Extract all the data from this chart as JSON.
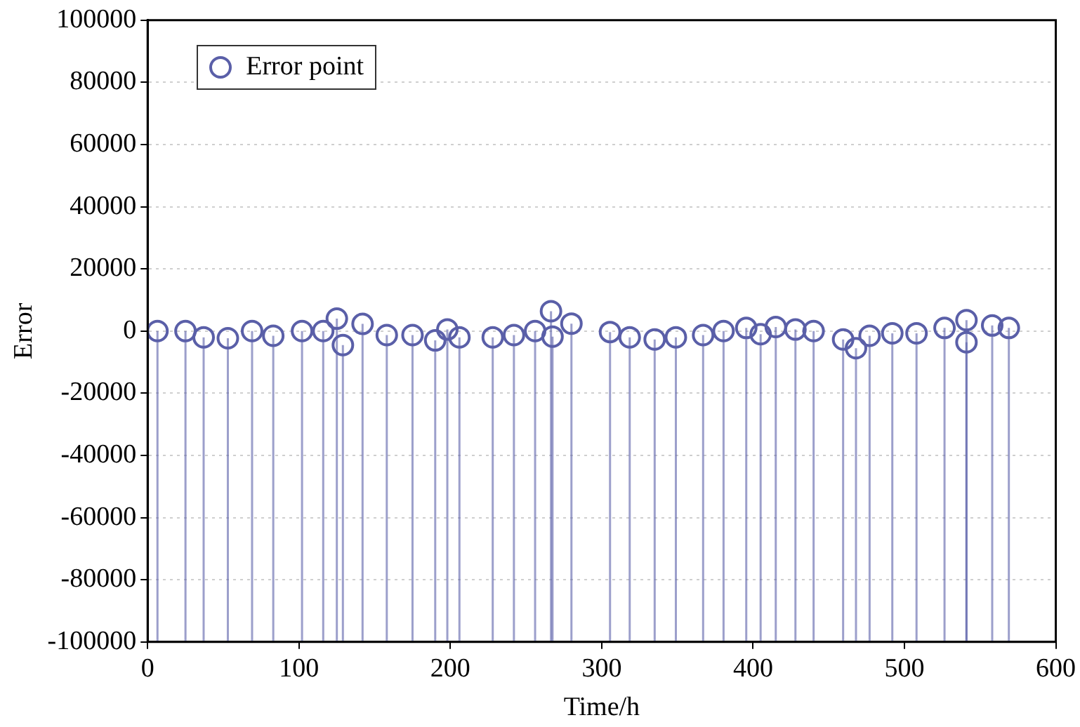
{
  "chart_data": {
    "type": "lollipop",
    "xlabel": "Time/h",
    "ylabel": "Error",
    "x": [
      6.5,
      25,
      37,
      53,
      69,
      83,
      102,
      116,
      125,
      129,
      142,
      158,
      175,
      190,
      198,
      206,
      228,
      242,
      256,
      266.5,
      267.5,
      280,
      305.5,
      318.5,
      335,
      349,
      367,
      380.5,
      395.5,
      405,
      415,
      428,
      440,
      459.5,
      468,
      477,
      492,
      508,
      526.5,
      541,
      541,
      558,
      569
    ],
    "series": [
      {
        "name": "Error point",
        "color": "#5a5fa8",
        "values": [
          0,
          0,
          -2000,
          -2300,
          0,
          -1500,
          0,
          0,
          4000,
          -4500,
          2300,
          -1300,
          -1300,
          -3000,
          500,
          -2000,
          -2000,
          -1300,
          0,
          6400,
          -1800,
          2400,
          -300,
          -2000,
          -2700,
          -2000,
          -1300,
          0,
          1000,
          -1000,
          1300,
          500,
          0,
          -2700,
          -5500,
          -1500,
          -700,
          -700,
          1000,
          3500,
          -3600,
          1800,
          1000
        ],
        "errors": [
          [
            -100000,
            0
          ],
          [
            -100000,
            0
          ],
          [
            -100000,
            -2000
          ],
          [
            -100000,
            -2300
          ],
          [
            -100000,
            0
          ],
          [
            -100000,
            -1500
          ],
          [
            -100000,
            0
          ],
          [
            -100000,
            0
          ],
          [
            -100000,
            4000
          ],
          [
            -100000,
            -4500
          ],
          [
            -100000,
            2300
          ],
          [
            -100000,
            -1300
          ],
          [
            -100000,
            -1300
          ],
          [
            -100000,
            -3000
          ],
          [
            -100000,
            500
          ],
          [
            -100000,
            -2000
          ],
          [
            -100000,
            -2000
          ],
          [
            -100000,
            -1300
          ],
          [
            -100000,
            0
          ],
          [
            -100000,
            6400
          ],
          [
            -100000,
            -1800
          ],
          [
            -100000,
            2400
          ],
          [
            -100000,
            -300
          ],
          [
            -100000,
            -2000
          ],
          [
            -100000,
            -2700
          ],
          [
            -100000,
            -2000
          ],
          [
            -100000,
            -1300
          ],
          [
            -100000,
            0
          ],
          [
            -100000,
            1000
          ],
          [
            -100000,
            -1000
          ],
          [
            -100000,
            1300
          ],
          [
            -100000,
            500
          ],
          [
            -100000,
            0
          ],
          [
            -100000,
            -2700
          ],
          [
            -100000,
            -5500
          ],
          [
            -100000,
            -1500
          ],
          [
            -100000,
            -700
          ],
          [
            -100000,
            -700
          ],
          [
            -100000,
            1000
          ],
          [
            -100000,
            3500
          ],
          [
            -100000,
            -3600
          ],
          [
            -100000,
            1800
          ],
          [
            -100000,
            1000
          ]
        ]
      }
    ],
    "xlim": [
      0,
      600
    ],
    "xticks": [
      0,
      100,
      200,
      300,
      400,
      500,
      600
    ],
    "ylim": [
      -100000,
      100000
    ],
    "yticks": [
      -100000,
      -80000,
      -60000,
      -40000,
      -20000,
      0,
      20000,
      40000,
      60000,
      80000,
      100000
    ],
    "grid": "y",
    "legend": "top left",
    "marker": "circle"
  }
}
